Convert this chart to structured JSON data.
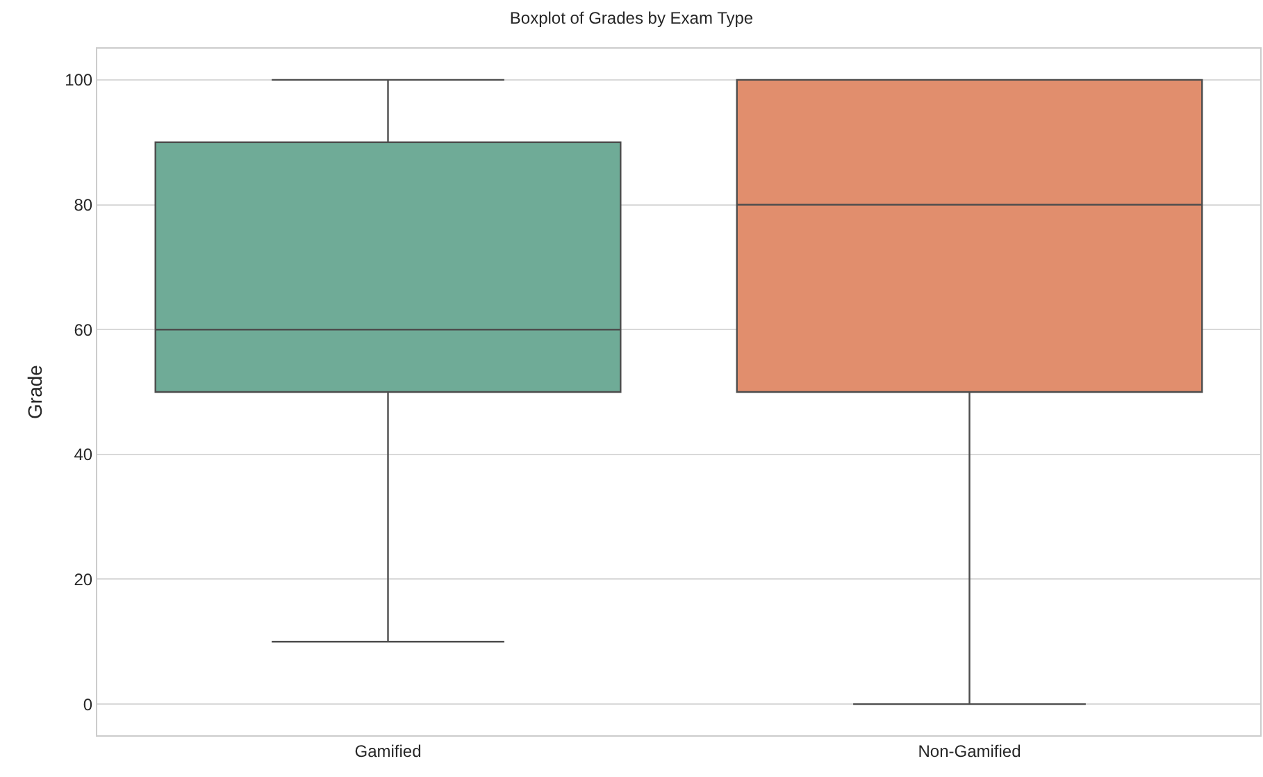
{
  "chart_data": {
    "type": "box",
    "title": "Boxplot of Grades by Exam Type",
    "ylabel": "Grade",
    "categories": [
      "Gamified",
      "Non-Gamified"
    ],
    "colors": [
      "#6fab97",
      "#e18e6d"
    ],
    "boxes": [
      {
        "low": 10,
        "q1": 50,
        "median": 60,
        "q3": 90,
        "high": 100
      },
      {
        "low": 0,
        "q1": 50,
        "median": 80,
        "q3": 100,
        "high": 100
      }
    ],
    "ylim": [
      -5,
      105
    ],
    "yticks": [
      0,
      20,
      40,
      60,
      80,
      100
    ],
    "grid": "y"
  }
}
